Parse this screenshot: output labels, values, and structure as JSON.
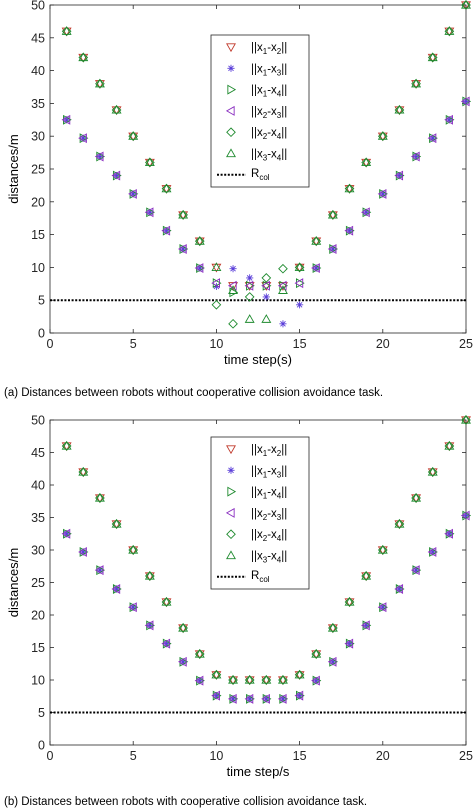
{
  "captions": {
    "a": "(a) Distances between robots without cooperative collision avoidance task.",
    "b": "(b) Distances between robots with cooperative collision avoidance task."
  },
  "chart_data": [
    {
      "type": "scatter",
      "id": "a",
      "title": "",
      "xlabel": "time step(s)",
      "ylabel": "distances/m",
      "xlim": [
        0,
        25
      ],
      "ylim": [
        0,
        50
      ],
      "xticks": [
        0,
        5,
        10,
        15,
        20,
        25
      ],
      "yticks": [
        0,
        5,
        10,
        15,
        20,
        25,
        30,
        35,
        40,
        45,
        50
      ],
      "grid": false,
      "legend": "top-center",
      "reference_line": {
        "label": "R_col",
        "value": 5,
        "style": "dotted"
      },
      "series": [
        {
          "name": "||x1-x2||",
          "marker": "triangle-down",
          "color": "#c0392b",
          "x": [
            1,
            2,
            3,
            4,
            5,
            6,
            7,
            8,
            9,
            10,
            11,
            12,
            13,
            14,
            15,
            16,
            17,
            18,
            19,
            20,
            21,
            22,
            23,
            24,
            25
          ],
          "y": [
            46,
            42,
            38,
            34,
            30,
            26,
            22,
            18,
            14,
            10,
            7.2,
            7.2,
            7.2,
            7.2,
            10,
            14,
            18,
            22,
            26,
            30,
            34,
            38,
            42,
            46,
            50
          ]
        },
        {
          "name": "||x1-x3||",
          "marker": "asterisk",
          "color": "#5b3fd9",
          "x": [
            1,
            2,
            3,
            4,
            5,
            6,
            7,
            8,
            9,
            10,
            11,
            12,
            13,
            14,
            15,
            16,
            17,
            18,
            19,
            20,
            21,
            22,
            23,
            24,
            25
          ],
          "y": [
            32.5,
            29.7,
            26.9,
            24,
            21.2,
            18.4,
            15.6,
            12.8,
            9.9,
            7.1,
            9.8,
            8.4,
            5.5,
            1.4,
            4.3,
            9.9,
            12.8,
            15.6,
            18.4,
            21.2,
            24,
            26.9,
            29.7,
            32.5,
            35.3
          ]
        },
        {
          "name": "||x1-x4||",
          "marker": "triangle-right",
          "color": "#1e8a2e",
          "x": [
            1,
            2,
            3,
            4,
            5,
            6,
            7,
            8,
            9,
            10,
            11,
            12,
            13,
            14,
            15,
            16,
            17,
            18,
            19,
            20,
            21,
            22,
            23,
            24,
            25
          ],
          "y": [
            32.5,
            29.7,
            26.9,
            24,
            21.2,
            18.4,
            15.6,
            12.8,
            9.9,
            7.6,
            6.2,
            7.2,
            7.2,
            7.2,
            7.6,
            9.9,
            12.8,
            15.6,
            18.4,
            21.2,
            24,
            26.9,
            29.7,
            32.5,
            35.3
          ]
        },
        {
          "name": "||x2-x3||",
          "marker": "triangle-left",
          "color": "#8a2fc0",
          "x": [
            1,
            2,
            3,
            4,
            5,
            6,
            7,
            8,
            9,
            10,
            11,
            12,
            13,
            14,
            15,
            16,
            17,
            18,
            19,
            20,
            21,
            22,
            23,
            24,
            25
          ],
          "y": [
            32.5,
            29.7,
            26.9,
            24,
            21.2,
            18.4,
            15.6,
            12.8,
            9.9,
            7.6,
            7.2,
            7.2,
            7.2,
            7.2,
            7.6,
            9.9,
            12.8,
            15.6,
            18.4,
            21.2,
            24,
            26.9,
            29.7,
            32.5,
            35.3
          ]
        },
        {
          "name": "||x2-x4||",
          "marker": "diamond",
          "color": "#1e8a2e",
          "x": [
            1,
            2,
            3,
            4,
            5,
            6,
            7,
            8,
            9,
            10,
            11,
            12,
            13,
            14,
            15,
            16,
            17,
            18,
            19,
            20,
            21,
            22,
            23,
            24,
            25
          ],
          "y": [
            46,
            42,
            38,
            34,
            30,
            26,
            22,
            18,
            14,
            4.3,
            1.4,
            5.5,
            8.4,
            9.8,
            10,
            14,
            18,
            22,
            26,
            30,
            34,
            38,
            42,
            46,
            50
          ]
        },
        {
          "name": "||x3-x4||",
          "marker": "triangle-up",
          "color": "#1e8a2e",
          "x": [
            1,
            2,
            3,
            4,
            5,
            6,
            7,
            8,
            9,
            10,
            11,
            12,
            13,
            14,
            15,
            16,
            17,
            18,
            19,
            20,
            21,
            22,
            23,
            24,
            25
          ],
          "y": [
            46,
            42,
            38,
            34,
            30,
            26,
            22,
            18,
            14,
            10,
            6.5,
            2.1,
            2.1,
            6.5,
            10,
            14,
            18,
            22,
            26,
            30,
            34,
            38,
            42,
            46,
            50
          ]
        }
      ]
    },
    {
      "type": "scatter",
      "id": "b",
      "title": "",
      "xlabel": "time step/s",
      "ylabel": "distances/m",
      "xlim": [
        0,
        25
      ],
      "ylim": [
        0,
        50
      ],
      "xticks": [
        0,
        5,
        10,
        15,
        20,
        25
      ],
      "yticks": [
        0,
        5,
        10,
        15,
        20,
        25,
        30,
        35,
        40,
        45,
        50
      ],
      "grid": false,
      "legend": "top-center",
      "reference_line": {
        "label": "R_col",
        "value": 5,
        "style": "dotted"
      },
      "series": [
        {
          "name": "||x1-x2||",
          "marker": "triangle-down",
          "color": "#c0392b",
          "x": [
            1,
            2,
            3,
            4,
            5,
            6,
            7,
            8,
            9,
            10,
            11,
            12,
            13,
            14,
            15,
            16,
            17,
            18,
            19,
            20,
            21,
            22,
            23,
            24,
            25
          ],
          "y": [
            46,
            42,
            38,
            34,
            30,
            26,
            22,
            18,
            14,
            10.8,
            10,
            10,
            10,
            10,
            10.8,
            14,
            18,
            22,
            26,
            30,
            34,
            38,
            42,
            46,
            50
          ]
        },
        {
          "name": "||x1-x3||",
          "marker": "asterisk",
          "color": "#5b3fd9",
          "x": [
            1,
            2,
            3,
            4,
            5,
            6,
            7,
            8,
            9,
            10,
            11,
            12,
            13,
            14,
            15,
            16,
            17,
            18,
            19,
            20,
            21,
            22,
            23,
            24,
            25
          ],
          "y": [
            32.5,
            29.7,
            26.9,
            24,
            21.2,
            18.4,
            15.6,
            12.8,
            9.9,
            7.6,
            7.1,
            7.1,
            7.1,
            7.1,
            7.6,
            9.9,
            12.8,
            15.6,
            18.4,
            21.2,
            24,
            26.9,
            29.7,
            32.5,
            35.3
          ]
        },
        {
          "name": "||x1-x4||",
          "marker": "triangle-right",
          "color": "#1e8a2e",
          "x": [
            1,
            2,
            3,
            4,
            5,
            6,
            7,
            8,
            9,
            10,
            11,
            12,
            13,
            14,
            15,
            16,
            17,
            18,
            19,
            20,
            21,
            22,
            23,
            24,
            25
          ],
          "y": [
            32.5,
            29.7,
            26.9,
            24,
            21.2,
            18.4,
            15.6,
            12.8,
            9.9,
            7.6,
            7.1,
            7.1,
            7.1,
            7.1,
            7.6,
            9.9,
            12.8,
            15.6,
            18.4,
            21.2,
            24,
            26.9,
            29.7,
            32.5,
            35.3
          ]
        },
        {
          "name": "||x2-x3||",
          "marker": "triangle-left",
          "color": "#8a2fc0",
          "x": [
            1,
            2,
            3,
            4,
            5,
            6,
            7,
            8,
            9,
            10,
            11,
            12,
            13,
            14,
            15,
            16,
            17,
            18,
            19,
            20,
            21,
            22,
            23,
            24,
            25
          ],
          "y": [
            32.5,
            29.7,
            26.9,
            24,
            21.2,
            18.4,
            15.6,
            12.8,
            9.9,
            7.6,
            7.1,
            7.1,
            7.1,
            7.1,
            7.6,
            9.9,
            12.8,
            15.6,
            18.4,
            21.2,
            24,
            26.9,
            29.7,
            32.5,
            35.3
          ]
        },
        {
          "name": "||x2-x4||",
          "marker": "diamond",
          "color": "#1e8a2e",
          "x": [
            1,
            2,
            3,
            4,
            5,
            6,
            7,
            8,
            9,
            10,
            11,
            12,
            13,
            14,
            15,
            16,
            17,
            18,
            19,
            20,
            21,
            22,
            23,
            24,
            25
          ],
          "y": [
            46,
            42,
            38,
            34,
            30,
            26,
            22,
            18,
            14,
            10.8,
            10,
            10,
            10,
            10,
            10.8,
            14,
            18,
            22,
            26,
            30,
            34,
            38,
            42,
            46,
            50
          ]
        },
        {
          "name": "||x3-x4||",
          "marker": "triangle-up",
          "color": "#1e8a2e",
          "x": [
            1,
            2,
            3,
            4,
            5,
            6,
            7,
            8,
            9,
            10,
            11,
            12,
            13,
            14,
            15,
            16,
            17,
            18,
            19,
            20,
            21,
            22,
            23,
            24,
            25
          ],
          "y": [
            46,
            42,
            38,
            34,
            30,
            26,
            22,
            18,
            14,
            10.8,
            10,
            10,
            10,
            10,
            10.8,
            14,
            18,
            22,
            26,
            30,
            34,
            38,
            42,
            46,
            50
          ]
        }
      ]
    }
  ]
}
